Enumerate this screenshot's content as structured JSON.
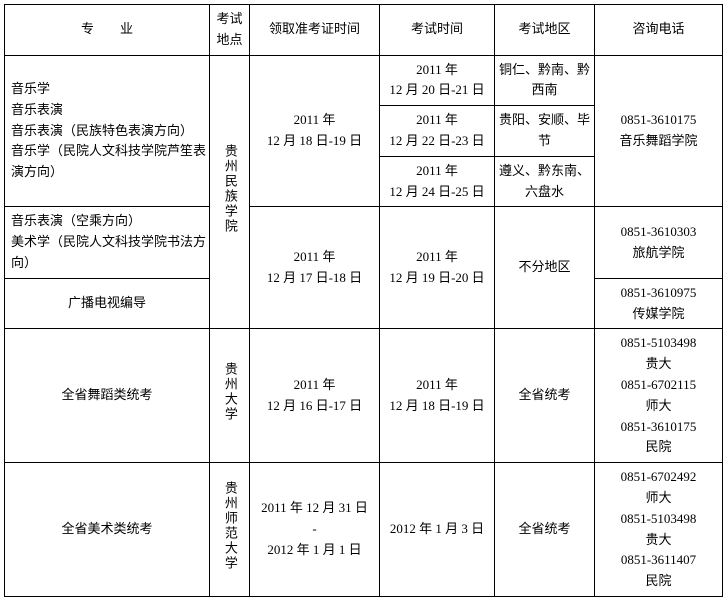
{
  "headers": {
    "major": "专　　业",
    "venue": "考试地点",
    "cert_time": "领取准考证时间",
    "exam_time": "考试时间",
    "region": "考试地区",
    "phone": "咨询电话"
  },
  "rows": {
    "r1": {
      "major": "音乐学\n音乐表演\n音乐表演（民族特色表演方向）\n音乐学（民院人文科技学院芦笙表演方向）",
      "venue": "贵州民族学院",
      "cert": "2011 年\n12 月 18 日-19 日",
      "exam1": "2011 年\n12 月 20 日-21 日",
      "region1": "铜仁、黔南、黔西南",
      "exam2": "2011 年\n12 月 22 日-23 日",
      "region2": "贵阳、安顺、毕节",
      "exam3": "2011 年\n12 月 24 日-25 日",
      "region3": "遵义、黔东南、六盘水",
      "phone": "0851-3610175\n音乐舞蹈学院"
    },
    "r2": {
      "major": "音乐表演（空乘方向）\n美术学（民院人文科技学院书法方向）",
      "cert": "2011 年\n12 月 17 日-18 日",
      "exam": "2011 年\n12 月 19 日-20 日",
      "region": "不分地区",
      "phone": "0851-3610303\n旅航学院"
    },
    "r3": {
      "major": "广播电视编导",
      "phone": "0851-3610975\n传媒学院"
    },
    "r4": {
      "major": "全省舞蹈类统考",
      "venue": "贵州大学",
      "cert": "2011 年\n12 月 16 日-17 日",
      "exam": "2011 年\n12 月 18 日-19 日",
      "region": "全省统考",
      "phone": "0851-5103498\n贵大\n0851-6702115\n师大\n0851-3610175\n民院"
    },
    "r5": {
      "major": "全省美术类统考",
      "venue": "贵州师范大学",
      "cert": "2011 年 12 月 31 日\n-\n2012 年 1 月 1 日",
      "exam": "2012 年 1 月 3 日",
      "region": "全省统考",
      "phone": "0851-6702492\n师大\n0851-5103498\n贵大\n0851-3611407\n民院"
    }
  }
}
